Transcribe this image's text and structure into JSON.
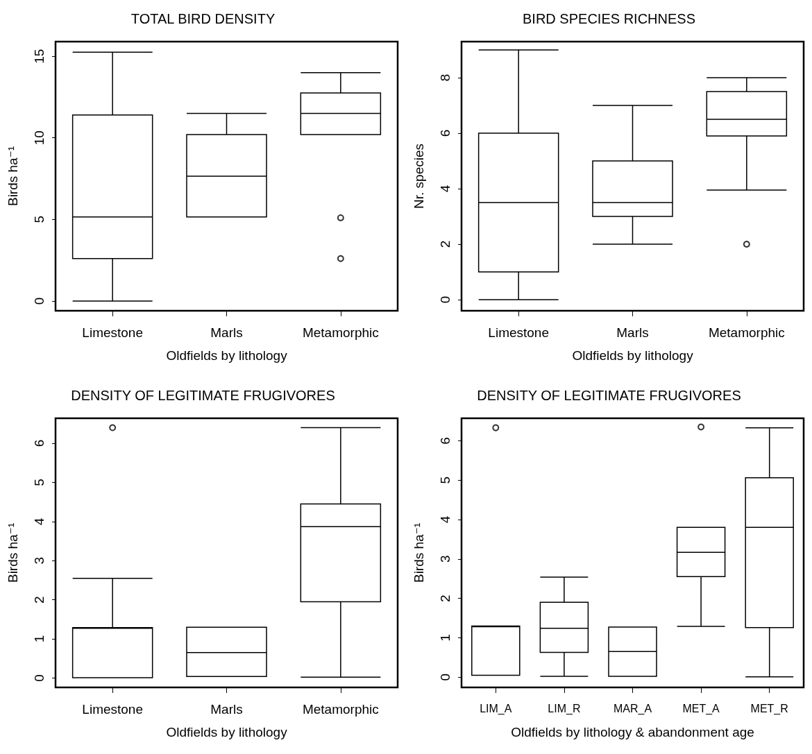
{
  "chart_data": [
    {
      "type": "box",
      "title": "TOTAL BIRD DENSITY",
      "xlabel": "Oldfields by lithology",
      "ylabel": "Birds ha⁻¹",
      "categories": [
        "Limestone",
        "Marls",
        "Metamorphic"
      ],
      "ylim": [
        -0.6,
        15.9
      ],
      "yticks": [
        0,
        5,
        10,
        15
      ],
      "grid": false,
      "boxes": [
        {
          "low": 0,
          "q1": 2.6,
          "median": 5.15,
          "q3": 11.4,
          "high": 15.25
        },
        {
          "low": 5.15,
          "q1": 5.15,
          "median": 7.65,
          "q3": 10.2,
          "high": 11.5
        },
        {
          "low": 10.2,
          "q1": 10.2,
          "median": 11.5,
          "q3": 12.75,
          "high": 14.0,
          "outliers": [
            5.1,
            2.6
          ]
        }
      ]
    },
    {
      "type": "box",
      "title": "BIRD SPECIES RICHNESS",
      "xlabel": "Oldfields by lithology",
      "ylabel": "Nr. species",
      "categories": [
        "Limestone",
        "Marls",
        "Metamorphic"
      ],
      "ylim": [
        -0.4,
        9.3
      ],
      "yticks": [
        0,
        2,
        4,
        6,
        8
      ],
      "grid": false,
      "boxes": [
        {
          "low": 0,
          "q1": 1.0,
          "median": 3.5,
          "q3": 6.0,
          "high": 9.0
        },
        {
          "low": 2.0,
          "q1": 3.0,
          "median": 3.5,
          "q3": 5.0,
          "high": 7.0
        },
        {
          "low": 3.95,
          "q1": 5.9,
          "median": 6.5,
          "q3": 7.5,
          "high": 8.0,
          "outliers": [
            2.0
          ]
        }
      ]
    },
    {
      "type": "box",
      "title": "DENSITY OF LEGITIMATE FRUGIVORES",
      "xlabel": "Oldfields by lithology",
      "ylabel": "Birds ha⁻¹",
      "categories": [
        "Limestone",
        "Marls",
        "Metamorphic"
      ],
      "ylim": [
        -0.24,
        6.64
      ],
      "yticks": [
        0,
        1,
        2,
        3,
        4,
        5,
        6
      ],
      "grid": false,
      "boxes": [
        {
          "low": 0.01,
          "q1": 0.01,
          "median": 1.27,
          "q3": 1.29,
          "high": 2.55,
          "outliers": [
            6.4
          ]
        },
        {
          "low": 0.04,
          "q1": 0.04,
          "median": 0.65,
          "q3": 1.3,
          "high": 1.3
        },
        {
          "low": 0.02,
          "q1": 1.95,
          "median": 3.87,
          "q3": 4.45,
          "high": 6.4
        }
      ]
    },
    {
      "type": "box",
      "title": "DENSITY OF LEGITIMATE FRUGIVORES",
      "xlabel": "Oldfields by lithology & abandonment age",
      "ylabel": "Birds ha⁻¹",
      "categories": [
        "LIM_A",
        "LIM_R",
        "MAR_A",
        "MET_A",
        "MET_R"
      ],
      "ylim": [
        -0.26,
        6.57
      ],
      "yticks": [
        0,
        1,
        2,
        3,
        4,
        5,
        6
      ],
      "grid": false,
      "boxes": [
        {
          "low": 0.05,
          "q1": 0.05,
          "median": 1.28,
          "q3": 1.3,
          "high": 1.3,
          "outliers": [
            6.33
          ]
        },
        {
          "low": 0.02,
          "q1": 0.63,
          "median": 1.24,
          "q3": 1.9,
          "high": 2.54
        },
        {
          "low": 0.02,
          "q1": 0.02,
          "median": 0.65,
          "q3": 1.27,
          "high": 1.27
        },
        {
          "low": 1.29,
          "q1": 2.55,
          "median": 3.17,
          "q3": 3.8,
          "high": 3.8,
          "outliers": [
            6.35
          ]
        },
        {
          "low": 0.01,
          "q1": 1.26,
          "median": 3.8,
          "q3": 5.06,
          "high": 6.33
        }
      ]
    }
  ]
}
